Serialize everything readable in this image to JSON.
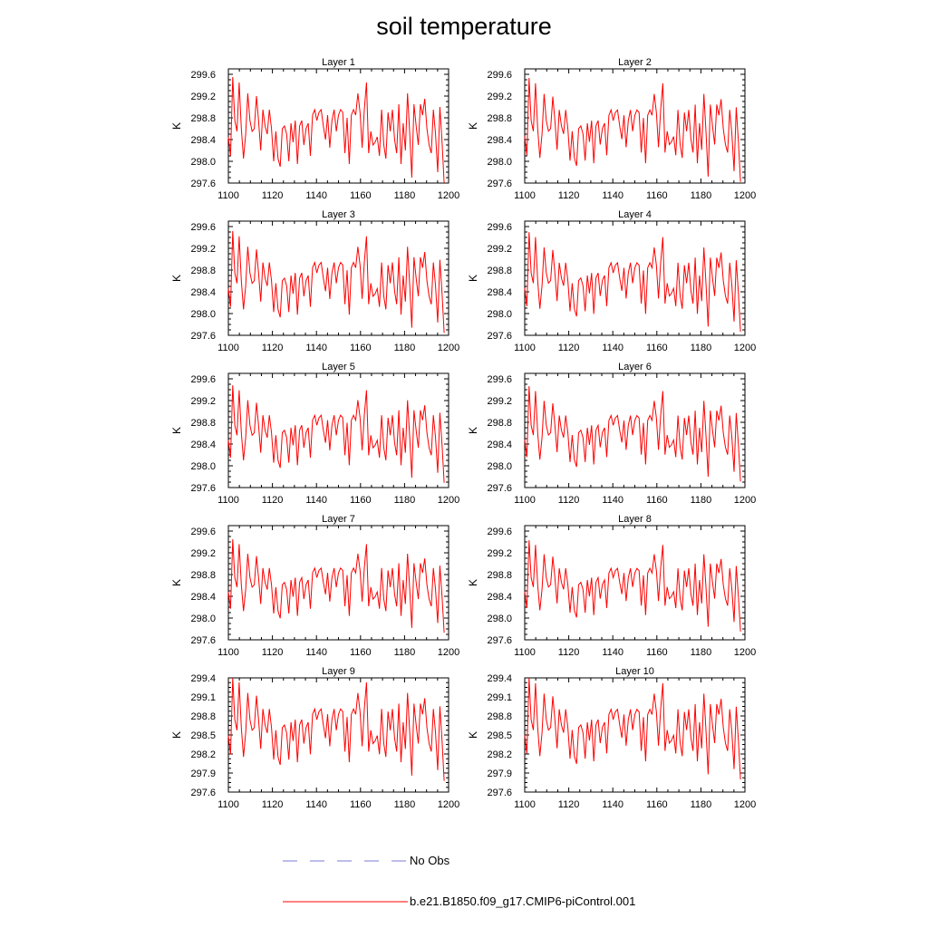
{
  "title": "soil temperature",
  "legend": [
    {
      "label": "No Obs",
      "color": "#7b7bd6",
      "style": "dashed"
    },
    {
      "label": "b.e21.B1850.f09_g17.CMIP6-piControl.001",
      "color": "#ff0000",
      "style": "solid"
    }
  ],
  "chart_data": [
    {
      "type": "line",
      "title": "Layer 1",
      "ylabel": "K",
      "xlim": [
        1100,
        1200
      ],
      "ylim": [
        297.6,
        299.7
      ],
      "xticks": [
        1100,
        1120,
        1140,
        1160,
        1180,
        1200
      ],
      "yticks": [
        297.6,
        298.0,
        298.4,
        298.8,
        299.2,
        299.6
      ],
      "ytick_labels": [
        "297.6",
        "298.0",
        "298.4",
        "298.8",
        "299.2",
        "299.6"
      ],
      "series": [
        {
          "name": "b.e21.B1850.f09_g17.CMIP6-piControl.001",
          "color": "#ff0000"
        }
      ]
    },
    {
      "type": "line",
      "title": "Layer 2",
      "ylabel": "K",
      "xlim": [
        1100,
        1200
      ],
      "ylim": [
        297.6,
        299.7
      ],
      "xticks": [
        1100,
        1120,
        1140,
        1160,
        1180,
        1200
      ],
      "yticks": [
        297.6,
        298.0,
        298.4,
        298.8,
        299.2,
        299.6
      ],
      "ytick_labels": [
        "297.6",
        "298.0",
        "298.4",
        "298.8",
        "299.2",
        "299.6"
      ],
      "series": [
        {
          "name": "b.e21.B1850.f09_g17.CMIP6-piControl.001",
          "color": "#ff0000"
        }
      ]
    },
    {
      "type": "line",
      "title": "Layer 3",
      "ylabel": "K",
      "xlim": [
        1100,
        1200
      ],
      "ylim": [
        297.6,
        299.7
      ],
      "xticks": [
        1100,
        1120,
        1140,
        1160,
        1180,
        1200
      ],
      "yticks": [
        297.6,
        298.0,
        298.4,
        298.8,
        299.2,
        299.6
      ],
      "ytick_labels": [
        "297.6",
        "298.0",
        "298.4",
        "298.8",
        "299.2",
        "299.6"
      ],
      "series": [
        {
          "name": "b.e21.B1850.f09_g17.CMIP6-piControl.001",
          "color": "#ff0000"
        }
      ]
    },
    {
      "type": "line",
      "title": "Layer 4",
      "ylabel": "K",
      "xlim": [
        1100,
        1200
      ],
      "ylim": [
        297.6,
        299.7
      ],
      "xticks": [
        1100,
        1120,
        1140,
        1160,
        1180,
        1200
      ],
      "yticks": [
        297.6,
        298.0,
        298.4,
        298.8,
        299.2,
        299.6
      ],
      "ytick_labels": [
        "297.6",
        "298.0",
        "298.4",
        "298.8",
        "299.2",
        "299.6"
      ],
      "series": [
        {
          "name": "b.e21.B1850.f09_g17.CMIP6-piControl.001",
          "color": "#ff0000"
        }
      ]
    },
    {
      "type": "line",
      "title": "Layer 5",
      "ylabel": "K",
      "xlim": [
        1100,
        1200
      ],
      "ylim": [
        297.6,
        299.7
      ],
      "xticks": [
        1100,
        1120,
        1140,
        1160,
        1180,
        1200
      ],
      "yticks": [
        297.6,
        298.0,
        298.4,
        298.8,
        299.2,
        299.6
      ],
      "ytick_labels": [
        "297.6",
        "298.0",
        "298.4",
        "298.8",
        "299.2",
        "299.6"
      ],
      "series": [
        {
          "name": "b.e21.B1850.f09_g17.CMIP6-piControl.001",
          "color": "#ff0000"
        }
      ]
    },
    {
      "type": "line",
      "title": "Layer 6",
      "ylabel": "K",
      "xlim": [
        1100,
        1200
      ],
      "ylim": [
        297.6,
        299.7
      ],
      "xticks": [
        1100,
        1120,
        1140,
        1160,
        1180,
        1200
      ],
      "yticks": [
        297.6,
        298.0,
        298.4,
        298.8,
        299.2,
        299.6
      ],
      "ytick_labels": [
        "297.6",
        "298.0",
        "298.4",
        "298.8",
        "299.2",
        "299.6"
      ],
      "series": [
        {
          "name": "b.e21.B1850.f09_g17.CMIP6-piControl.001",
          "color": "#ff0000"
        }
      ]
    },
    {
      "type": "line",
      "title": "Layer 7",
      "ylabel": "K",
      "xlim": [
        1100,
        1200
      ],
      "ylim": [
        297.6,
        299.7
      ],
      "xticks": [
        1100,
        1120,
        1140,
        1160,
        1180,
        1200
      ],
      "yticks": [
        297.6,
        298.0,
        298.4,
        298.8,
        299.2,
        299.6
      ],
      "ytick_labels": [
        "297.6",
        "298.0",
        "298.4",
        "298.8",
        "299.2",
        "299.6"
      ],
      "series": [
        {
          "name": "b.e21.B1850.f09_g17.CMIP6-piControl.001",
          "color": "#ff0000"
        }
      ]
    },
    {
      "type": "line",
      "title": "Layer 8",
      "ylabel": "K",
      "xlim": [
        1100,
        1200
      ],
      "ylim": [
        297.6,
        299.7
      ],
      "xticks": [
        1100,
        1120,
        1140,
        1160,
        1180,
        1200
      ],
      "yticks": [
        297.6,
        298.0,
        298.4,
        298.8,
        299.2,
        299.6
      ],
      "ytick_labels": [
        "297.6",
        "298.0",
        "298.4",
        "298.8",
        "299.2",
        "299.6"
      ],
      "series": [
        {
          "name": "b.e21.B1850.f09_g17.CMIP6-piControl.001",
          "color": "#ff0000"
        }
      ]
    },
    {
      "type": "line",
      "title": "Layer 9",
      "ylabel": "K",
      "xlim": [
        1100,
        1200
      ],
      "ylim": [
        297.6,
        299.4
      ],
      "xticks": [
        1100,
        1120,
        1140,
        1160,
        1180,
        1200
      ],
      "yticks": [
        297.6,
        297.9,
        298.2,
        298.5,
        298.8,
        299.1,
        299.4
      ],
      "ytick_labels": [
        "297.6",
        "297.9",
        "298.2",
        "298.5",
        "298.8",
        "299.1",
        "299.4"
      ],
      "series": [
        {
          "name": "b.e21.B1850.f09_g17.CMIP6-piControl.001",
          "color": "#ff0000"
        }
      ]
    },
    {
      "type": "line",
      "title": "Layer 10",
      "ylabel": "K",
      "xlim": [
        1100,
        1200
      ],
      "ylim": [
        297.6,
        299.4
      ],
      "xticks": [
        1100,
        1120,
        1140,
        1160,
        1180,
        1200
      ],
      "yticks": [
        297.6,
        297.9,
        298.2,
        298.5,
        298.8,
        299.1,
        299.4
      ],
      "ytick_labels": [
        "297.6",
        "297.9",
        "298.2",
        "298.5",
        "298.8",
        "299.1",
        "299.4"
      ],
      "series": [
        {
          "name": "b.e21.B1850.f09_g17.CMIP6-piControl.001",
          "color": "#ff0000"
        }
      ]
    }
  ],
  "series_values": [
    298.45,
    298.1,
    299.55,
    298.75,
    298.55,
    299.45,
    298.6,
    298.05,
    298.5,
    299.25,
    298.75,
    298.55,
    298.6,
    299.2,
    298.75,
    298.2,
    298.95,
    298.65,
    298.5,
    298.95,
    298.6,
    298.0,
    298.55,
    298.05,
    297.9,
    298.6,
    298.65,
    298.5,
    298.0,
    298.7,
    298.35,
    298.75,
    297.95,
    298.65,
    298.75,
    298.3,
    298.6,
    298.7,
    298.1,
    298.85,
    298.95,
    298.75,
    298.9,
    298.95,
    298.65,
    298.4,
    298.85,
    298.25,
    298.75,
    298.95,
    298.55,
    298.85,
    298.95,
    298.9,
    298.15,
    298.8,
    297.95,
    298.85,
    298.95,
    298.85,
    299.25,
    298.9,
    298.25,
    298.95,
    299.45,
    298.15,
    298.55,
    298.3,
    298.35,
    298.45,
    298.1,
    298.95,
    298.3,
    298.05,
    298.9,
    298.55,
    298.95,
    298.4,
    298.15,
    299.05,
    297.95,
    298.7,
    298.2,
    299.25,
    298.55,
    297.7,
    299.05,
    298.65,
    298.3,
    299.05,
    298.85,
    299.15,
    298.6,
    298.3,
    298.15,
    298.95,
    298.5,
    297.8,
    299.0,
    298.35,
    297.6
  ]
}
